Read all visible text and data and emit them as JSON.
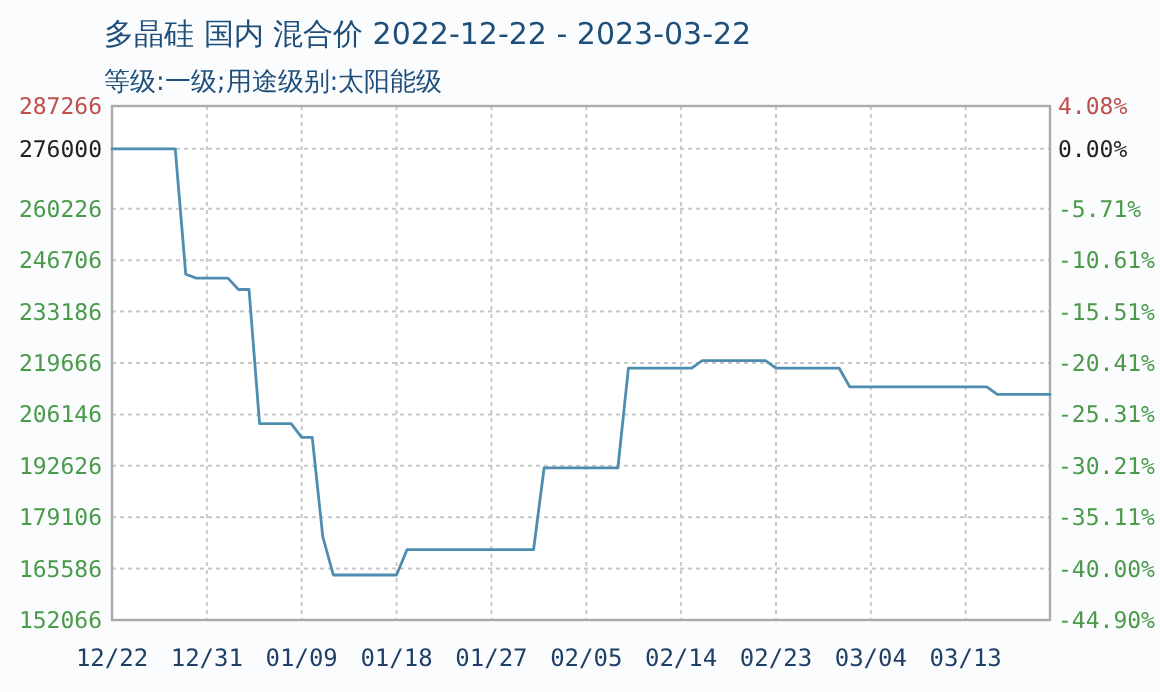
{
  "chart_data": {
    "type": "line",
    "title": "多晶硅 国内 混合价 2022-12-22 - 2023-03-22",
    "subtitle": "等级:一级;用途级别:太阳能级",
    "x": [
      "2022-12-22",
      "2022-12-28",
      "2022-12-29",
      "2022-12-30",
      "2023-01-02",
      "2023-01-03",
      "2023-01-04",
      "2023-01-05",
      "2023-01-08",
      "2023-01-09",
      "2023-01-10",
      "2023-01-11",
      "2023-01-12",
      "2023-01-18",
      "2023-01-19",
      "2023-01-31",
      "2023-02-01",
      "2023-02-08",
      "2023-02-09",
      "2023-02-15",
      "2023-02-16",
      "2023-02-22",
      "2023-02-23",
      "2023-03-01",
      "2023-03-02",
      "2023-03-15",
      "2023-03-16",
      "2023-03-21"
    ],
    "values": [
      276000,
      276000,
      243000,
      242000,
      242000,
      239000,
      239000,
      203700,
      203700,
      200100,
      200100,
      174000,
      163900,
      163900,
      170600,
      170600,
      192100,
      192100,
      218300,
      218300,
      220300,
      220300,
      218300,
      218300,
      213400,
      213400,
      211400,
      211400
    ],
    "color": "#4f8db0",
    "xlim": [
      "2022-12-22",
      "2023-03-21"
    ],
    "xticks": [
      {
        "value": "2022-12-22",
        "label": "12/22"
      },
      {
        "value": "2022-12-31",
        "label": "12/31"
      },
      {
        "value": "2023-01-09",
        "label": "01/09"
      },
      {
        "value": "2023-01-18",
        "label": "01/18"
      },
      {
        "value": "2023-01-27",
        "label": "01/27"
      },
      {
        "value": "2023-02-05",
        "label": "02/05"
      },
      {
        "value": "2023-02-14",
        "label": "02/14"
      },
      {
        "value": "2023-02-23",
        "label": "02/23"
      },
      {
        "value": "2023-03-04",
        "label": "03/04"
      },
      {
        "value": "2023-03-13",
        "label": "03/13"
      }
    ],
    "ylim": [
      152066,
      287266
    ],
    "yticks": [
      152066,
      165586,
      179106,
      192626,
      206146,
      219666,
      233186,
      246706,
      260226,
      276000,
      287266
    ],
    "y2lim": [
      -44.9,
      4.08
    ],
    "y2ticks": [
      {
        "value": -44.9,
        "label": "-44.90%"
      },
      {
        "value": -40.0,
        "label": "-40.00%"
      },
      {
        "value": -35.11,
        "label": "-35.11%"
      },
      {
        "value": -30.21,
        "label": "-30.21%"
      },
      {
        "value": -25.31,
        "label": "-25.31%"
      },
      {
        "value": -20.41,
        "label": "-20.41%"
      },
      {
        "value": -15.51,
        "label": "-15.51%"
      },
      {
        "value": -10.61,
        "label": "-10.61%"
      },
      {
        "value": -5.71,
        "label": "-5.71%"
      },
      {
        "value": 0.0,
        "label": "0.00%"
      },
      {
        "value": 4.08,
        "label": "4.08%"
      }
    ],
    "grid": true
  }
}
